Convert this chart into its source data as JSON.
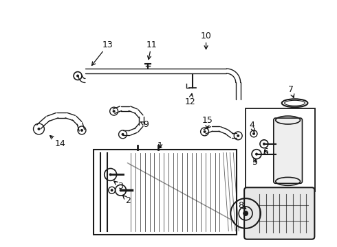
{
  "bg_color": "#ffffff",
  "line_color": "#1a1a1a",
  "text_color": "#111111",
  "figsize": [
    4.9,
    3.6
  ],
  "dpi": 100
}
